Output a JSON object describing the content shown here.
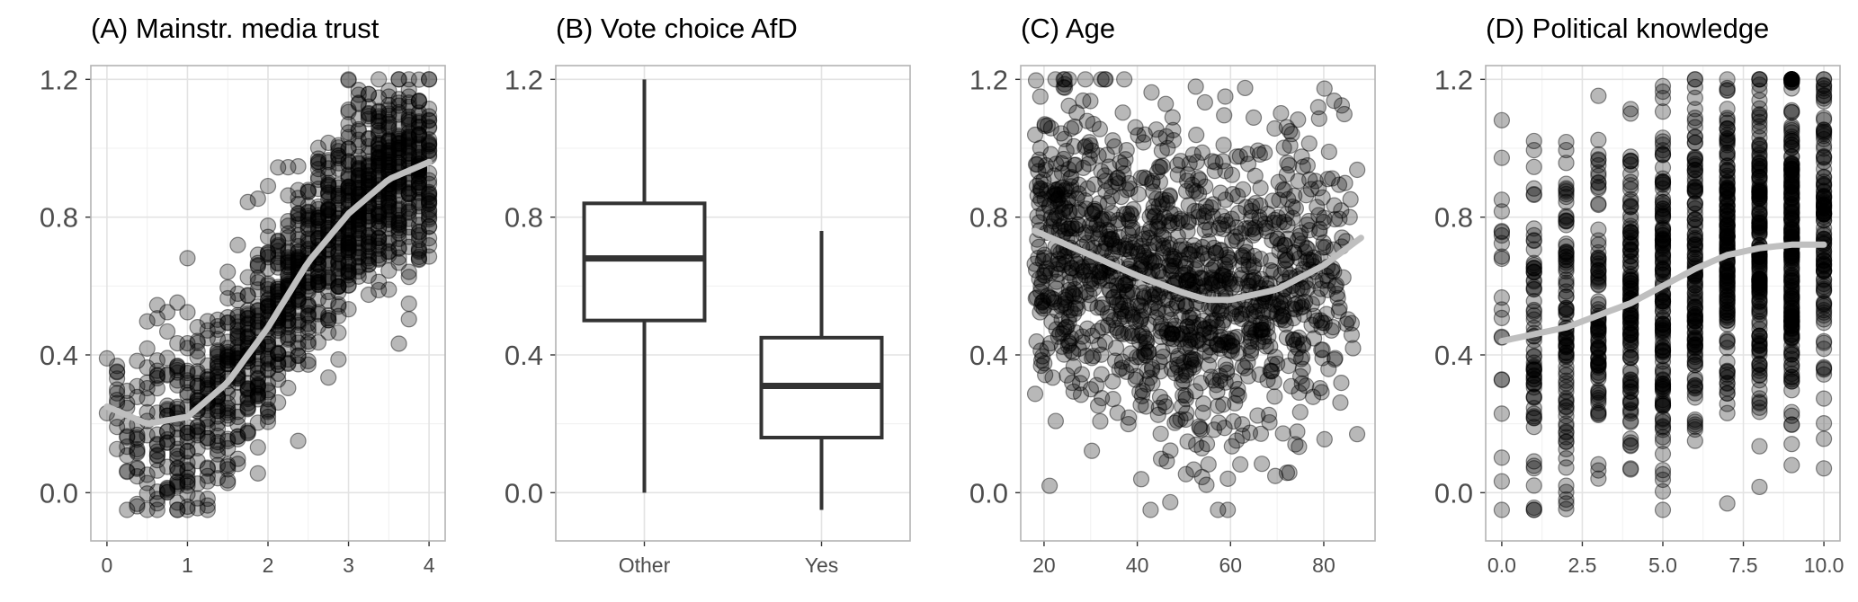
{
  "chart_data": [
    {
      "type": "scatter",
      "title": "(A) Mainstr. media trust",
      "xlabel": "",
      "ylabel": "",
      "xlim": [
        -0.2,
        4.2
      ],
      "ylim": [
        -0.14,
        1.24
      ],
      "x_ticks": [
        "0",
        "1",
        "2",
        "3",
        "4"
      ],
      "y_ticks": [
        "0.0",
        "0.4",
        "0.8",
        "1.2"
      ],
      "grid": true,
      "smooth": {
        "x": [
          0,
          0.5,
          1,
          1.5,
          2,
          2.5,
          3,
          3.5,
          4
        ],
        "y": [
          0.25,
          0.2,
          0.22,
          0.32,
          0.48,
          0.67,
          0.81,
          0.91,
          0.96
        ]
      }
    },
    {
      "type": "box",
      "title": "(B) Vote choice AfD",
      "xlabel": "",
      "ylabel": "",
      "categories": [
        "Other",
        "Yes"
      ],
      "ylim": [
        -0.14,
        1.24
      ],
      "y_ticks": [
        "0.0",
        "0.4",
        "0.8",
        "1.2"
      ],
      "grid": true,
      "boxes": [
        {
          "whisker_low": 0.0,
          "q1": 0.5,
          "median": 0.68,
          "q3": 0.84,
          "whisker_high": 1.2
        },
        {
          "whisker_low": -0.05,
          "q1": 0.16,
          "median": 0.31,
          "q3": 0.45,
          "whisker_high": 0.76
        }
      ]
    },
    {
      "type": "scatter",
      "title": "(C) Age",
      "xlabel": "",
      "ylabel": "",
      "xlim": [
        15,
        91
      ],
      "ylim": [
        -0.14,
        1.24
      ],
      "x_ticks": [
        "20",
        "40",
        "60",
        "80"
      ],
      "y_ticks": [
        "0.0",
        "0.4",
        "0.8",
        "1.2"
      ],
      "grid": true,
      "smooth": {
        "x": [
          18,
          30,
          40,
          50,
          55,
          60,
          70,
          80,
          88
        ],
        "y": [
          0.76,
          0.69,
          0.63,
          0.58,
          0.56,
          0.56,
          0.59,
          0.66,
          0.74
        ]
      }
    },
    {
      "type": "scatter",
      "title": "(D) Political knowledge",
      "xlabel": "",
      "ylabel": "",
      "xlim": [
        -0.5,
        10.5
      ],
      "ylim": [
        -0.14,
        1.24
      ],
      "x_ticks": [
        "0.0",
        "2.5",
        "5.0",
        "7.5",
        "10.0"
      ],
      "y_ticks": [
        "0.0",
        "0.4",
        "0.8",
        "1.2"
      ],
      "grid": true,
      "smooth": {
        "x": [
          0,
          2,
          4,
          5,
          6,
          7,
          8,
          9,
          10
        ],
        "y": [
          0.44,
          0.48,
          0.55,
          0.6,
          0.65,
          0.69,
          0.71,
          0.72,
          0.72
        ]
      }
    }
  ]
}
